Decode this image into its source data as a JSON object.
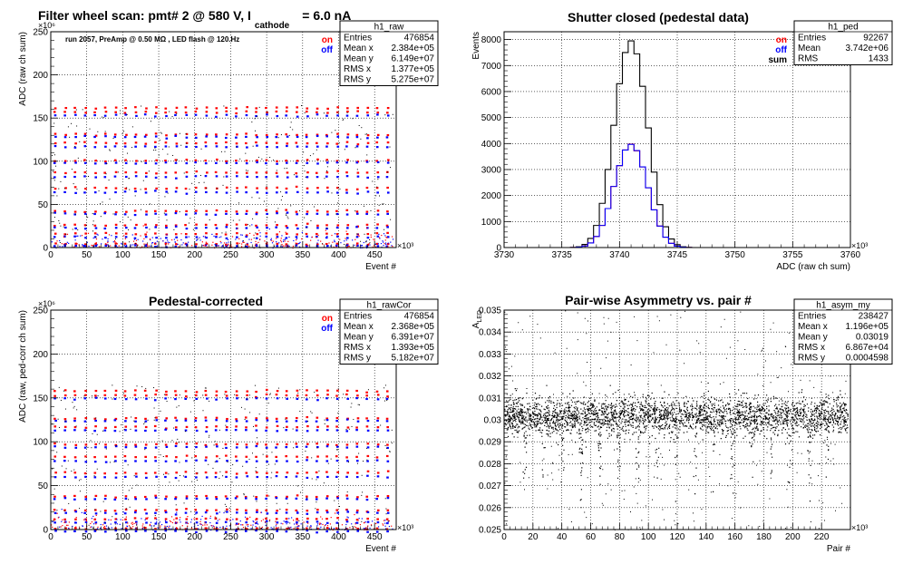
{
  "chart_data": [
    {
      "type": "scatter",
      "title": "Filter wheel scan: pmt#   2 @   580 V, I",
      "title_sub": "cathode",
      "title_tail": "= 6.0 nA",
      "annotation": "run 2057, PreAmp @ 0.50 MΩ , LED flash @  120.Hz",
      "xlabel": "Event #",
      "ylabel": "ADC (raw ch sum)",
      "x_exponent": "×10³",
      "y_exponent": "×10⁶",
      "xlim": [
        0,
        480
      ],
      "ylim": [
        0,
        250
      ],
      "xticks": [
        0,
        50,
        100,
        150,
        200,
        250,
        300,
        350,
        400,
        450
      ],
      "yticks": [
        0,
        50,
        100,
        150,
        200,
        250
      ],
      "grid": true,
      "legend": {
        "placement": "top-right",
        "entries": [
          {
            "name": "on",
            "color": "#ff0000"
          },
          {
            "name": "off",
            "color": "#0000ff"
          }
        ]
      },
      "stats": {
        "name": "h1_raw",
        "rows": [
          [
            "Entries",
            "476854"
          ],
          [
            "Mean x",
            "2.384e+05"
          ],
          [
            "Mean y",
            "6.149e+07"
          ],
          [
            "RMS x",
            "1.377e+05"
          ],
          [
            "RMS y",
            "5.275e+07"
          ]
        ]
      },
      "bands_on": [
        162,
        157,
        131,
        121,
        101,
        87,
        69,
        42,
        26,
        16,
        4
      ],
      "bands_off": [
        153,
        128,
        117,
        98,
        82,
        64,
        39,
        23,
        12,
        2
      ]
    },
    {
      "type": "line",
      "title": "Shutter closed (pedestal data)",
      "xlabel": "ADC (raw ch sum)",
      "ylabel": "Events",
      "x_exponent": "×10³",
      "xlim": [
        3730,
        3760
      ],
      "ylim": [
        0,
        8300
      ],
      "xticks": [
        3730,
        3735,
        3740,
        3745,
        3750,
        3755,
        3760
      ],
      "yticks": [
        0,
        1000,
        2000,
        3000,
        4000,
        5000,
        6000,
        7000,
        8000
      ],
      "grid": true,
      "legend": {
        "placement": "top-right",
        "entries": [
          {
            "name": "on",
            "color": "#ff0000"
          },
          {
            "name": "off",
            "color": "#0000ff"
          },
          {
            "name": "sum",
            "color": "#000000"
          }
        ]
      },
      "stats": {
        "name": "h1_ped",
        "rows": [
          [
            "Entries",
            "92267"
          ],
          [
            "Mean",
            "3.742e+06"
          ],
          [
            "RMS",
            "1433"
          ]
        ]
      },
      "x": [
        3736.0,
        3736.5,
        3737.0,
        3737.5,
        3738.0,
        3738.5,
        3739.0,
        3739.5,
        3740.0,
        3740.5,
        3741.0,
        3741.5,
        3742.0,
        3742.5,
        3743.0,
        3743.5,
        3744.0,
        3744.5,
        3745.0,
        3745.5,
        3746.0
      ],
      "series": [
        {
          "name": "sum",
          "color": "#000000",
          "values": [
            5,
            30,
            120,
            350,
            850,
            1700,
            3000,
            4700,
            6300,
            7500,
            7950,
            7450,
            6200,
            4600,
            2900,
            1650,
            800,
            330,
            110,
            30,
            5
          ]
        },
        {
          "name": "on",
          "color": "#ff0000",
          "values": [
            3,
            15,
            60,
            175,
            425,
            850,
            1500,
            2350,
            3150,
            3750,
            3980,
            3720,
            3100,
            2300,
            1450,
            825,
            400,
            165,
            55,
            15,
            3
          ]
        },
        {
          "name": "off",
          "color": "#0000ff",
          "values": [
            2,
            15,
            60,
            175,
            425,
            850,
            1500,
            2350,
            3150,
            3750,
            3970,
            3730,
            3100,
            2300,
            1450,
            825,
            400,
            165,
            55,
            15,
            2
          ]
        }
      ]
    },
    {
      "type": "scatter",
      "title": "Pedestal-corrected",
      "xlabel": "Event #",
      "ylabel": "ADC (raw, ped-corr ch sum)",
      "x_exponent": "×10³",
      "y_exponent": "×10⁶",
      "xlim": [
        0,
        480
      ],
      "ylim": [
        0,
        250
      ],
      "xticks": [
        0,
        50,
        100,
        150,
        200,
        250,
        300,
        350,
        400,
        450
      ],
      "yticks": [
        0,
        50,
        100,
        150,
        200,
        250
      ],
      "grid": true,
      "legend": {
        "placement": "top-right",
        "entries": [
          {
            "name": "on",
            "color": "#ff0000"
          },
          {
            "name": "off",
            "color": "#0000ff"
          }
        ]
      },
      "stats": {
        "name": "h1_rawCor",
        "rows": [
          [
            "Entries",
            "476854"
          ],
          [
            "Mean x",
            "2.368e+05"
          ],
          [
            "Mean y",
            "6.391e+07"
          ],
          [
            "RMS x",
            "1.393e+05"
          ],
          [
            "RMS y",
            "5.182e+07"
          ]
        ]
      },
      "bands_on": [
        158,
        153,
        127,
        117,
        97,
        83,
        65,
        38,
        22,
        12,
        1
      ],
      "bands_off": [
        149,
        124,
        113,
        94,
        78,
        60,
        35,
        19,
        8,
        -2
      ]
    },
    {
      "type": "scatter",
      "title": "Pair-wise Asymmetry vs. pair #",
      "xlabel": "Pair #",
      "ylabel": "A_LED",
      "ylabel_main": "A",
      "ylabel_sub": "LED",
      "x_exponent": "×10³",
      "xlim": [
        0,
        240
      ],
      "ylim": [
        0.025,
        0.035
      ],
      "xticks": [
        0,
        20,
        40,
        60,
        80,
        100,
        120,
        140,
        160,
        180,
        200,
        220
      ],
      "yticks": [
        0.025,
        0.026,
        0.027,
        0.028,
        0.029,
        0.03,
        0.031,
        0.032,
        0.033,
        0.034,
        0.035
      ],
      "ytick_labels": [
        "0.025",
        "0.026",
        "0.027",
        "0.028",
        "0.029",
        "0.03",
        "0.031",
        "0.032",
        "0.033",
        "0.034",
        "0.035"
      ],
      "grid": true,
      "stats": {
        "name": "h1_asym_my",
        "rows": [
          [
            "Entries",
            "238427"
          ],
          [
            "Mean x",
            "1.196e+05"
          ],
          [
            "Mean y",
            "0.03019"
          ],
          [
            "RMS x",
            "6.867e+04"
          ],
          [
            "RMS y",
            "0.0004598"
          ]
        ]
      },
      "band_center": 0.0302,
      "band_halfwidth": 0.0006,
      "spike_positions": [
        14,
        27,
        40,
        53,
        66,
        79,
        92,
        106,
        119,
        132,
        145,
        158,
        172,
        185,
        198,
        211,
        224
      ]
    }
  ]
}
